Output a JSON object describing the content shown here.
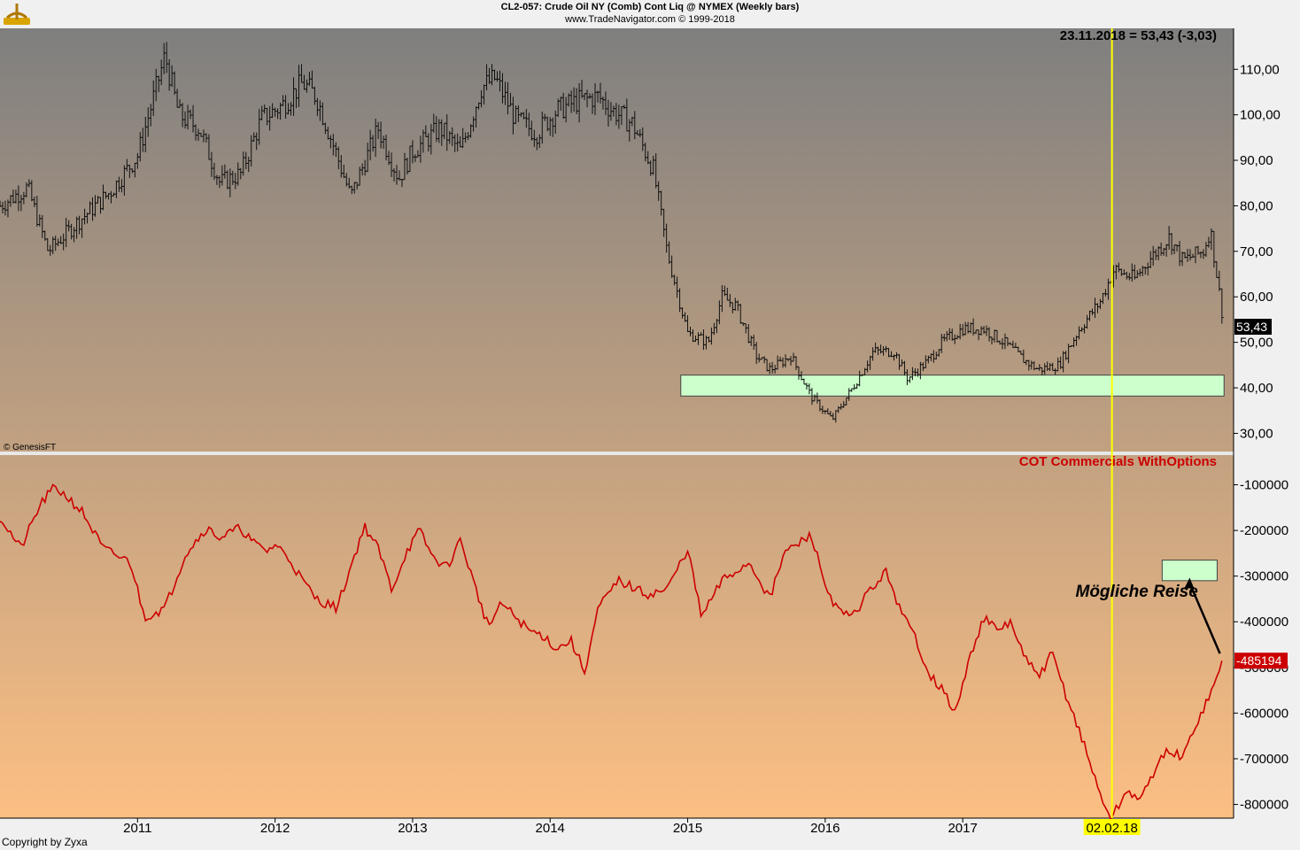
{
  "header": {
    "title": "CL2-057:  Crude Oil NY (Comb) Cont Liq @ NYMEX  (Weekly bars)",
    "subtitle": "www.TradeNavigator.com © 1999-2018"
  },
  "footer": {
    "copyright": "Copyright by Zyxa"
  },
  "colors": {
    "bars": "#111111",
    "cot_line": "#cc0000",
    "marker_line": "#ffff00",
    "zone_fill": "#ccffcc",
    "bg_top": "#7f7f7f",
    "bg_bottom": "#fcbf83"
  },
  "chart_data": [
    {
      "type": "ohlc",
      "panel": "price",
      "price_label": "23.11.2018 = 53,43 (-3,03)",
      "last_value_label": "53,43",
      "watermark": "© GenesisFT",
      "yticks": [
        "110,00",
        "100,00",
        "90,00",
        "80,00",
        "70,00",
        "60,00",
        "50,00",
        "40,00",
        "30,00"
      ],
      "ylim": [
        26,
        119
      ],
      "support_zone": {
        "from": 2014.95,
        "to": 2018.9,
        "low": 38.2,
        "high": 42.8
      },
      "series": [
        {
          "x": [
            2010.0,
            2010.2,
            2010.35,
            2010.55,
            2010.8,
            2011.0,
            2011.2,
            2011.3,
            2011.45,
            2011.6,
            2011.75,
            2011.9,
            2012.05,
            2012.2,
            2012.3,
            2012.45,
            2012.55,
            2012.75,
            2012.9,
            2013.0,
            2013.2,
            2013.35,
            2013.5,
            2013.6,
            2013.75,
            2013.9,
            2014.05,
            2014.2,
            2014.35,
            2014.45,
            2014.6,
            2014.75,
            2014.85,
            2015.0,
            2015.15,
            2015.25,
            2015.35,
            2015.5,
            2015.6,
            2015.75,
            2015.9,
            2016.05,
            2016.2,
            2016.35,
            2016.5,
            2016.6,
            2016.75,
            2016.85,
            2017.0,
            2017.15,
            2017.3,
            2017.45,
            2017.55,
            2017.7,
            2017.85,
            2018.0,
            2018.1,
            2018.25,
            2018.35,
            2018.5,
            2018.6,
            2018.75,
            2018.8,
            2018.9
          ],
          "close": [
            80,
            84,
            70,
            76,
            83,
            91,
            113,
            100,
            97,
            85,
            87,
            99,
            102,
            107,
            104,
            91,
            82,
            97,
            86,
            92,
            97,
            92,
            106,
            108,
            99,
            96,
            101,
            103,
            104,
            101,
            98,
            88,
            70,
            52,
            50,
            60,
            58,
            47,
            44,
            47,
            38,
            33,
            40,
            48,
            48,
            42,
            46,
            50,
            53,
            53,
            50,
            46,
            44,
            45,
            53,
            59,
            66,
            64,
            68,
            73,
            68,
            70,
            75,
            53.43
          ]
        }
      ]
    },
    {
      "type": "line",
      "panel": "cot",
      "series_name": "COT Commercials WithOptions",
      "last_value_label": "-485194",
      "yticks": [
        "-100000",
        "-200000",
        "-300000",
        "-400000",
        "-500000",
        "-600000",
        "-700000",
        "-800000"
      ],
      "ylim": [
        -830000,
        -35000
      ],
      "target_zone": {
        "from": 2018.45,
        "to": 2018.85,
        "low": -310000,
        "high": -265000
      },
      "annotation": "Mögliche Reise",
      "series": [
        {
          "name": "COT Commercials WithOptions",
          "x": [
            2010.0,
            2010.15,
            2010.3,
            2010.4,
            2010.5,
            2010.6,
            2010.75,
            2010.95,
            2011.05,
            2011.2,
            2011.35,
            2011.5,
            2011.6,
            2011.75,
            2011.85,
            2011.95,
            2012.0,
            2012.1,
            2012.2,
            2012.3,
            2012.45,
            2012.55,
            2012.65,
            2012.75,
            2012.85,
            2012.95,
            2013.05,
            2013.15,
            2013.25,
            2013.35,
            2013.45,
            2013.55,
            2013.65,
            2013.75,
            2013.85,
            2013.95,
            2014.05,
            2014.15,
            2014.25,
            2014.35,
            2014.5,
            2014.7,
            2014.85,
            2015.0,
            2015.1,
            2015.25,
            2015.45,
            2015.6,
            2015.7,
            2015.9,
            2016.0,
            2016.1,
            2016.2,
            2016.3,
            2016.45,
            2016.55,
            2016.65,
            2016.75,
            2016.85,
            2016.95,
            2017.05,
            2017.15,
            2017.25,
            2017.35,
            2017.45,
            2017.55,
            2017.65,
            2017.75,
            2017.85,
            2018.0,
            2018.08,
            2018.2,
            2018.3,
            2018.4,
            2018.5,
            2018.6,
            2018.7,
            2018.8,
            2018.9
          ],
          "y": [
            -170000,
            -240000,
            -140000,
            -105000,
            -130000,
            -160000,
            -240000,
            -270000,
            -390000,
            -370000,
            -250000,
            -195000,
            -215000,
            -195000,
            -230000,
            -245000,
            -230000,
            -260000,
            -310000,
            -350000,
            -370000,
            -280000,
            -190000,
            -240000,
            -330000,
            -250000,
            -200000,
            -260000,
            -280000,
            -220000,
            -320000,
            -410000,
            -360000,
            -390000,
            -420000,
            -430000,
            -460000,
            -440000,
            -510000,
            -370000,
            -310000,
            -340000,
            -330000,
            -240000,
            -390000,
            -310000,
            -270000,
            -350000,
            -250000,
            -210000,
            -320000,
            -380000,
            -390000,
            -340000,
            -290000,
            -380000,
            -430000,
            -510000,
            -550000,
            -600000,
            -480000,
            -390000,
            -420000,
            -400000,
            -480000,
            -520000,
            -470000,
            -560000,
            -640000,
            -780000,
            -830000,
            -770000,
            -790000,
            -720000,
            -680000,
            -700000,
            -620000,
            -560000,
            -485194
          ]
        }
      ],
      "xticks": [
        "2011",
        "2012",
        "2013",
        "2014",
        "2015",
        "2016",
        "2017"
      ],
      "marker": {
        "x": 2018.085,
        "label": "02.02.18"
      }
    }
  ]
}
